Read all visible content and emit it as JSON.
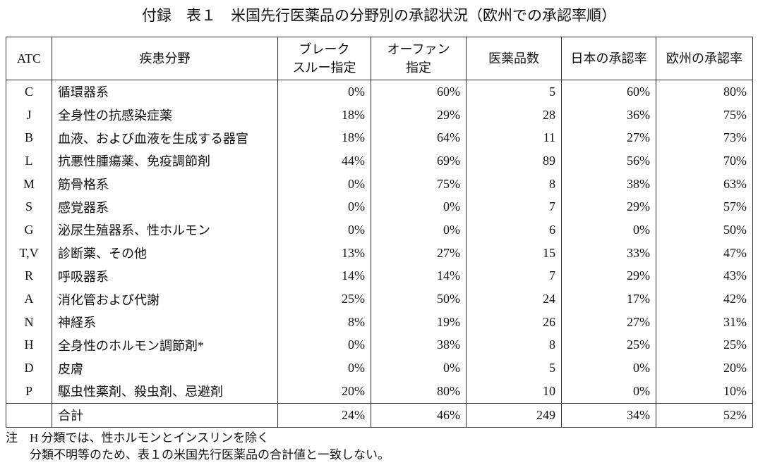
{
  "title": "付録　表１　米国先行医薬品の分野別の承認状況（欧州での承認率順）",
  "table": {
    "header": [
      [
        "ATC"
      ],
      [
        "疾患分野"
      ],
      [
        "ブレーク",
        "スルー指定"
      ],
      [
        "オーファン",
        "指定"
      ],
      [
        "医薬品数"
      ],
      [
        "日本の承認率"
      ],
      [
        "欧州の承認率"
      ]
    ],
    "rows": [
      [
        "C",
        "循環器系",
        "0%",
        "60%",
        "5",
        "60%",
        "80%"
      ],
      [
        "J",
        "全身性の抗感染症薬",
        "18%",
        "29%",
        "28",
        "36%",
        "75%"
      ],
      [
        "B",
        "血液、および血液を生成する器官",
        "18%",
        "64%",
        "11",
        "27%",
        "73%"
      ],
      [
        "L",
        "抗悪性腫瘍薬、免疫調節剤",
        "44%",
        "69%",
        "89",
        "56%",
        "70%"
      ],
      [
        "M",
        "筋骨格系",
        "0%",
        "75%",
        "8",
        "38%",
        "63%"
      ],
      [
        "S",
        "感覚器系",
        "0%",
        "0%",
        "7",
        "29%",
        "57%"
      ],
      [
        "G",
        "泌尿生殖器系、性ホルモン",
        "0%",
        "0%",
        "6",
        "0%",
        "50%"
      ],
      [
        "T,V",
        "診断薬、その他",
        "13%",
        "27%",
        "15",
        "33%",
        "47%"
      ],
      [
        "R",
        "呼吸器系",
        "14%",
        "14%",
        "7",
        "29%",
        "43%"
      ],
      [
        "A",
        "消化管および代謝",
        "25%",
        "50%",
        "24",
        "17%",
        "42%"
      ],
      [
        "N",
        "神経系",
        "8%",
        "19%",
        "26",
        "27%",
        "31%"
      ],
      [
        "H",
        "全身性のホルモン調節剤*",
        "0%",
        "38%",
        "8",
        "25%",
        "25%"
      ],
      [
        "D",
        "皮膚",
        "0%",
        "0%",
        "5",
        "0%",
        "20%"
      ],
      [
        "P",
        "駆虫性薬剤、殺虫剤、忌避剤",
        "20%",
        "80%",
        "10",
        "0%",
        "10%"
      ]
    ],
    "total": {
      "label": "合計",
      "values": [
        "24%",
        "46%",
        "249",
        "34%",
        "52%"
      ]
    }
  },
  "notes": {
    "label": "注",
    "lines": [
      "H 分類では、性ホルモンとインスリンを除く",
      "分類不明等のため、表１の米国先行医薬品の合計値と一致しない。"
    ]
  }
}
